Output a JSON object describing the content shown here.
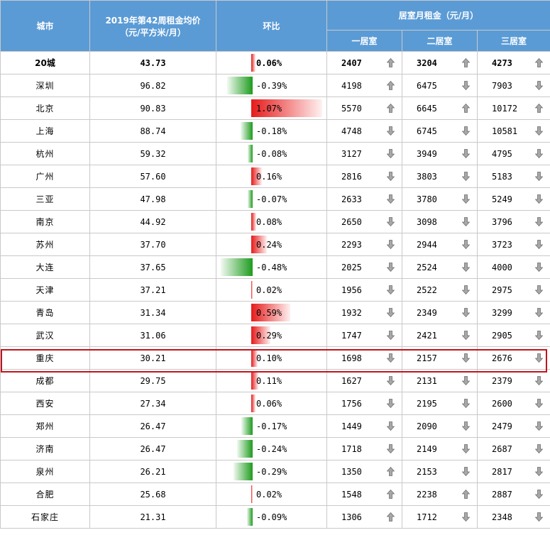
{
  "header": {
    "city": "城市",
    "price_line1": "2019年第42周租金均价",
    "price_line2": "（元/平方米/月）",
    "change": "环比",
    "rent_group": "居室月租金（元/月）",
    "r1": "一居室",
    "r2": "二居室",
    "r3": "三居室"
  },
  "colors": {
    "header_bg": "#5b9bd5",
    "up_bar": "#e61a1a",
    "down_bar": "#1e9b1e",
    "highlight_border": "#c0141c"
  },
  "rows": [
    {
      "city": "20城",
      "price": "43.73",
      "change": "0.06%",
      "change_value": 0.06,
      "r1": "2407",
      "r1_dir": "up",
      "r2": "3204",
      "r2_dir": "up",
      "r3": "4273",
      "r3_dir": "up"
    },
    {
      "city": "深圳",
      "price": "96.82",
      "change": "-0.39%",
      "change_value": -0.39,
      "r1": "4198",
      "r1_dir": "up",
      "r2": "6475",
      "r2_dir": "down",
      "r3": "7903",
      "r3_dir": "down"
    },
    {
      "city": "北京",
      "price": "90.83",
      "change": "1.07%",
      "change_value": 1.07,
      "r1": "5570",
      "r1_dir": "up",
      "r2": "6645",
      "r2_dir": "up",
      "r3": "10172",
      "r3_dir": "up"
    },
    {
      "city": "上海",
      "price": "88.74",
      "change": "-0.18%",
      "change_value": -0.18,
      "r1": "4748",
      "r1_dir": "down",
      "r2": "6745",
      "r2_dir": "down",
      "r3": "10581",
      "r3_dir": "down"
    },
    {
      "city": "杭州",
      "price": "59.32",
      "change": "-0.08%",
      "change_value": -0.08,
      "r1": "3127",
      "r1_dir": "down",
      "r2": "3949",
      "r2_dir": "down",
      "r3": "4795",
      "r3_dir": "down"
    },
    {
      "city": "广州",
      "price": "57.60",
      "change": "0.16%",
      "change_value": 0.16,
      "r1": "2816",
      "r1_dir": "down",
      "r2": "3803",
      "r2_dir": "down",
      "r3": "5183",
      "r3_dir": "down"
    },
    {
      "city": "三亚",
      "price": "47.98",
      "change": "-0.07%",
      "change_value": -0.07,
      "r1": "2633",
      "r1_dir": "down",
      "r2": "3780",
      "r2_dir": "down",
      "r3": "5249",
      "r3_dir": "down"
    },
    {
      "city": "南京",
      "price": "44.92",
      "change": "0.08%",
      "change_value": 0.08,
      "r1": "2650",
      "r1_dir": "down",
      "r2": "3098",
      "r2_dir": "down",
      "r3": "3796",
      "r3_dir": "down"
    },
    {
      "city": "苏州",
      "price": "37.70",
      "change": "0.24%",
      "change_value": 0.24,
      "r1": "2293",
      "r1_dir": "down",
      "r2": "2944",
      "r2_dir": "down",
      "r3": "3723",
      "r3_dir": "down"
    },
    {
      "city": "大连",
      "price": "37.65",
      "change": "-0.48%",
      "change_value": -0.48,
      "r1": "2025",
      "r1_dir": "down",
      "r2": "2524",
      "r2_dir": "down",
      "r3": "4000",
      "r3_dir": "down"
    },
    {
      "city": "天津",
      "price": "37.21",
      "change": "0.02%",
      "change_value": 0.02,
      "r1": "1956",
      "r1_dir": "down",
      "r2": "2522",
      "r2_dir": "down",
      "r3": "2975",
      "r3_dir": "down"
    },
    {
      "city": "青岛",
      "price": "31.34",
      "change": "0.59%",
      "change_value": 0.59,
      "r1": "1932",
      "r1_dir": "down",
      "r2": "2349",
      "r2_dir": "down",
      "r3": "3299",
      "r3_dir": "down"
    },
    {
      "city": "武汉",
      "price": "31.06",
      "change": "0.29%",
      "change_value": 0.29,
      "r1": "1747",
      "r1_dir": "down",
      "r2": "2421",
      "r2_dir": "down",
      "r3": "2905",
      "r3_dir": "down"
    },
    {
      "city": "重庆",
      "price": "30.21",
      "change": "0.10%",
      "change_value": 0.1,
      "r1": "1698",
      "r1_dir": "down",
      "r2": "2157",
      "r2_dir": "down",
      "r3": "2676",
      "r3_dir": "down",
      "highlight": true
    },
    {
      "city": "成都",
      "price": "29.75",
      "change": "0.11%",
      "change_value": 0.11,
      "r1": "1627",
      "r1_dir": "down",
      "r2": "2131",
      "r2_dir": "down",
      "r3": "2379",
      "r3_dir": "down"
    },
    {
      "city": "西安",
      "price": "27.34",
      "change": "0.06%",
      "change_value": 0.06,
      "r1": "1756",
      "r1_dir": "down",
      "r2": "2195",
      "r2_dir": "down",
      "r3": "2600",
      "r3_dir": "down"
    },
    {
      "city": "郑州",
      "price": "26.47",
      "change": "-0.17%",
      "change_value": -0.17,
      "r1": "1449",
      "r1_dir": "down",
      "r2": "2090",
      "r2_dir": "down",
      "r3": "2479",
      "r3_dir": "down"
    },
    {
      "city": "济南",
      "price": "26.47",
      "change": "-0.24%",
      "change_value": -0.24,
      "r1": "1718",
      "r1_dir": "down",
      "r2": "2149",
      "r2_dir": "down",
      "r3": "2687",
      "r3_dir": "down"
    },
    {
      "city": "泉州",
      "price": "26.21",
      "change": "-0.29%",
      "change_value": -0.29,
      "r1": "1350",
      "r1_dir": "up",
      "r2": "2153",
      "r2_dir": "down",
      "r3": "2817",
      "r3_dir": "down"
    },
    {
      "city": "合肥",
      "price": "25.68",
      "change": "0.02%",
      "change_value": 0.02,
      "r1": "1548",
      "r1_dir": "up",
      "r2": "2238",
      "r2_dir": "up",
      "r3": "2887",
      "r3_dir": "down"
    },
    {
      "city": "石家庄",
      "price": "21.31",
      "change": "-0.09%",
      "change_value": -0.09,
      "r1": "1306",
      "r1_dir": "up",
      "r2": "1712",
      "r2_dir": "down",
      "r3": "2348",
      "r3_dir": "down"
    }
  ]
}
